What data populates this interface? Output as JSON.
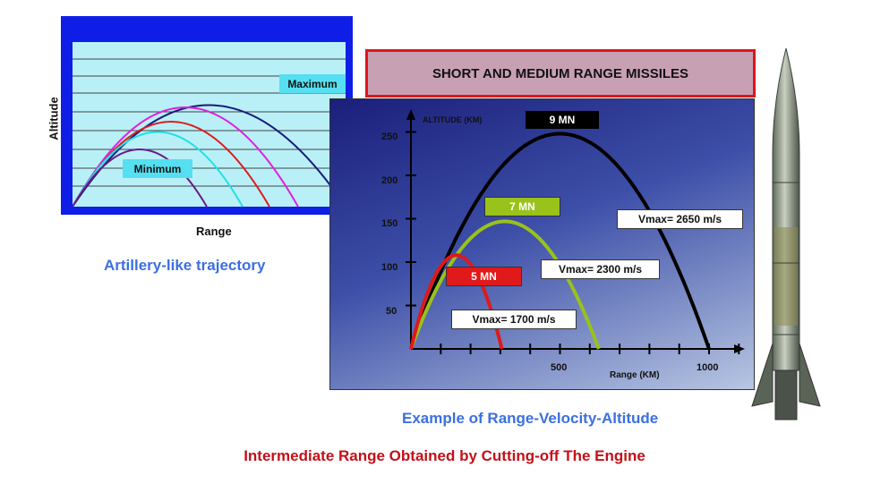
{
  "left": {
    "ylabel": "Altitude",
    "xlabel": "Range",
    "max_label": "Maximum",
    "min_label": "Minimum",
    "caption": "Artillery-like trajectory"
  },
  "right": {
    "title": "SHORT AND MEDIUM RANGE MISSILES",
    "caption": "Example of Range-Velocity-Altitude"
  },
  "footer": "Intermediate Range Obtained by Cutting-off The Engine",
  "chart_data": {
    "type": "line",
    "title": "",
    "ylabel": "ALTITUDE (KM)",
    "xlabel": "Range (KM)",
    "xlim": [
      0,
      1100
    ],
    "ylim": [
      0,
      270
    ],
    "x_ticks": [
      "500",
      "1000"
    ],
    "y_ticks": [
      "250",
      "200",
      "150",
      "100",
      "50"
    ],
    "series": [
      {
        "name": "9 MN",
        "range_km": 1000,
        "apogee_km": 248,
        "velocity": "Vmax= 2650 m/s",
        "color": "#000000"
      },
      {
        "name": "7 MN",
        "range_km": 630,
        "apogee_km": 147,
        "velocity": "Vmax= 2300 m/s",
        "color": "#99c21a"
      },
      {
        "name": "5 MN",
        "range_km": 305,
        "apogee_km": 108,
        "velocity": "Vmax= 1700 m/s",
        "color": "#dd1a1a"
      }
    ]
  }
}
